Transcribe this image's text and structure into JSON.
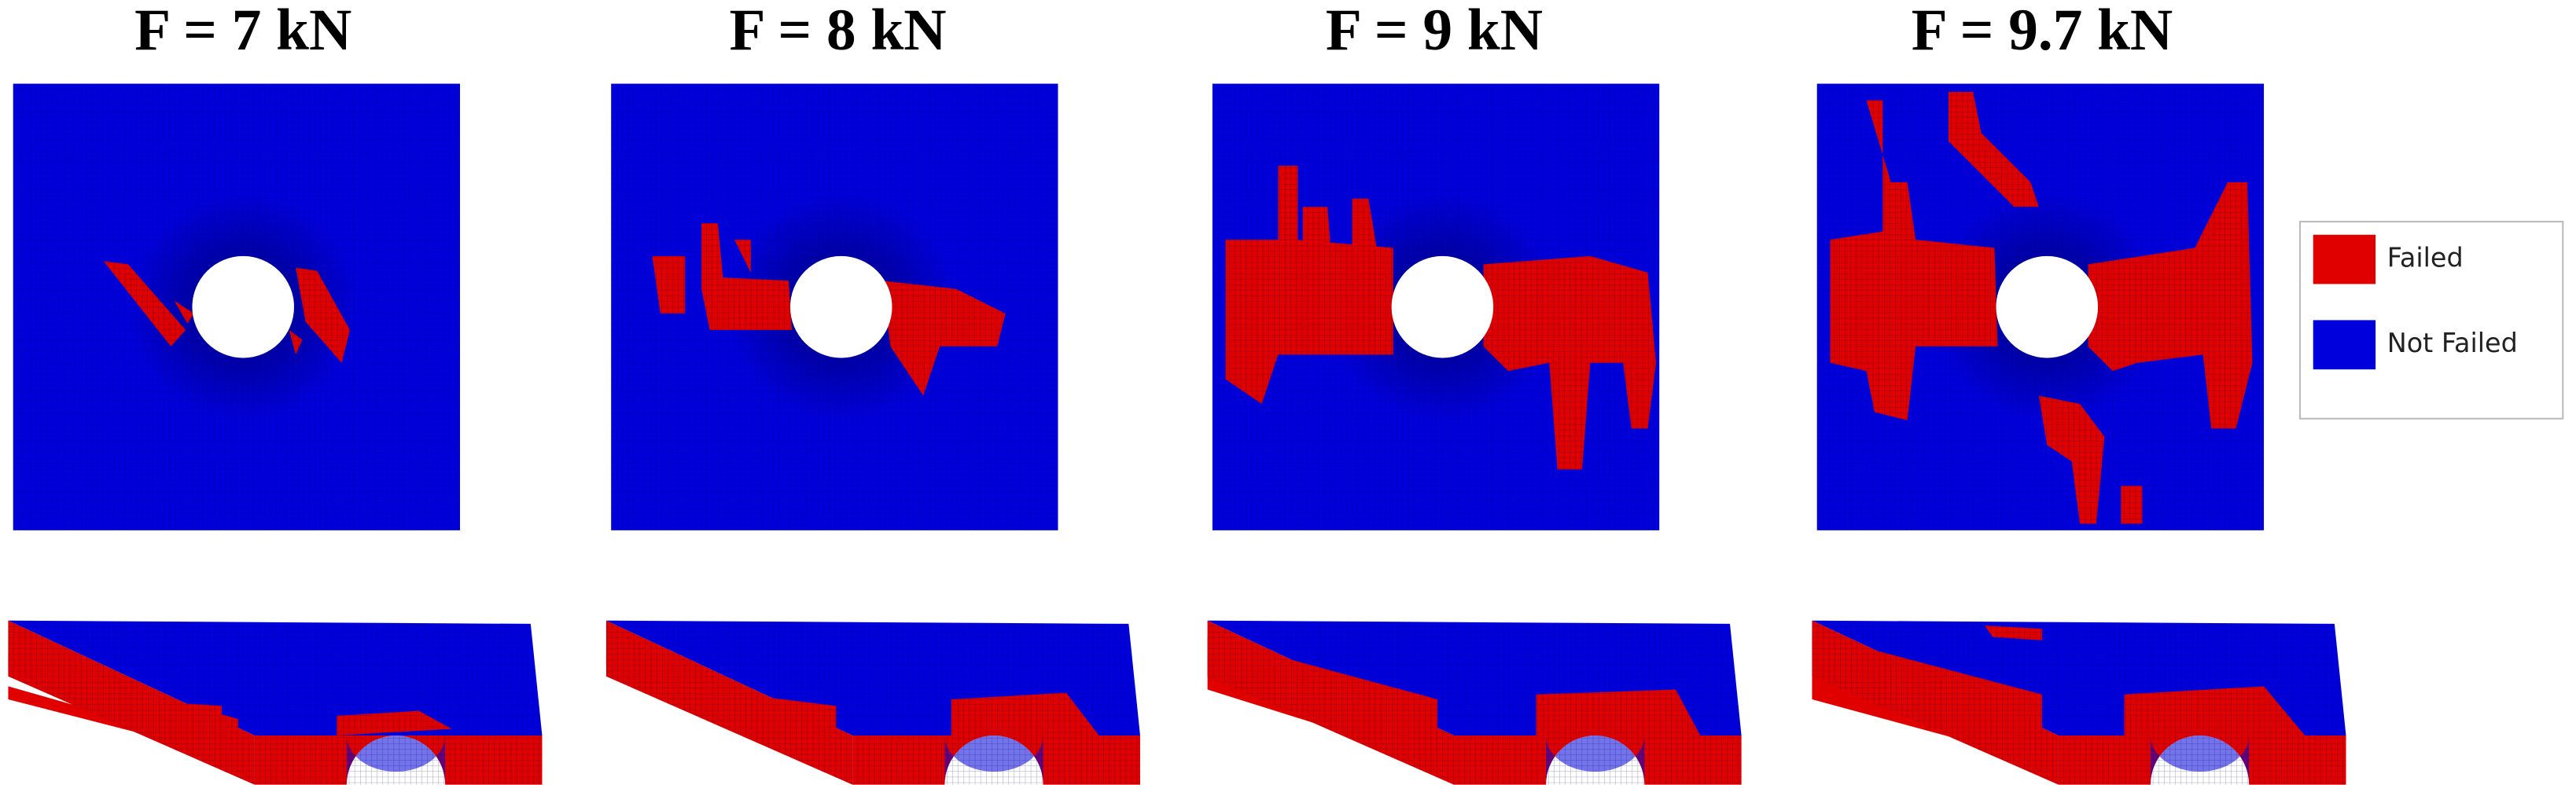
{
  "panels": [
    {
      "title": "F = 7 kN"
    },
    {
      "title": "F = 8 kN"
    },
    {
      "title": "F = 9 kN"
    },
    {
      "title": "F = 9.7 kN"
    }
  ],
  "legend": {
    "items": [
      {
        "label": "Failed",
        "color": "#e00000"
      },
      {
        "label": "Not Failed",
        "color": "#0000dd"
      }
    ]
  }
}
